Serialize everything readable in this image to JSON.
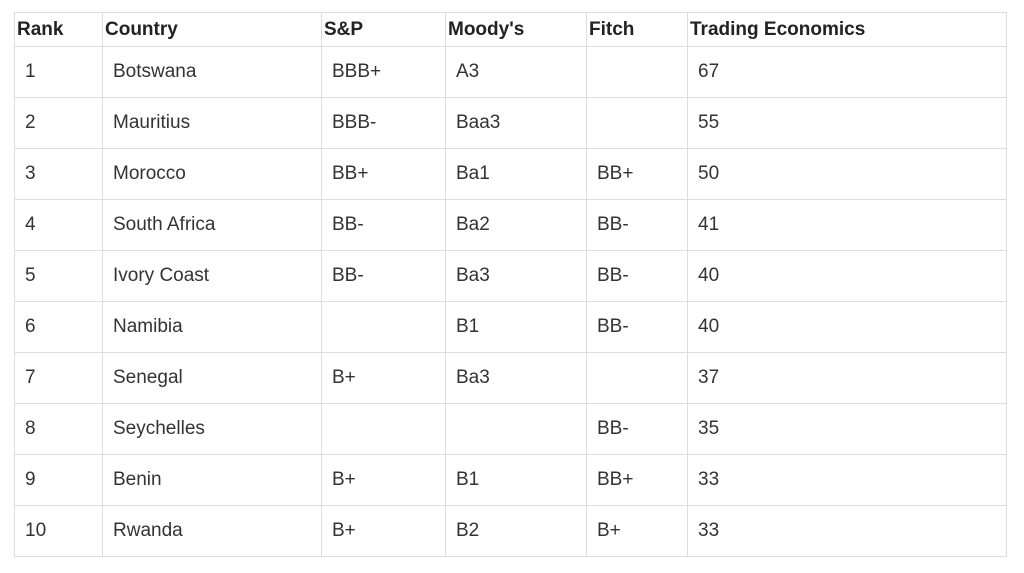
{
  "table": {
    "headers": [
      "Rank",
      "Country",
      "S&P",
      "Moody's",
      "Fitch",
      "Trading Economics"
    ],
    "rows": [
      [
        "1",
        "Botswana",
        "BBB+",
        "A3",
        "",
        "67"
      ],
      [
        "2",
        "Mauritius",
        "BBB-",
        "Baa3",
        "",
        "55"
      ],
      [
        "3",
        "Morocco",
        "BB+",
        "Ba1",
        "BB+",
        "50"
      ],
      [
        "4",
        "South Africa",
        "BB-",
        "Ba2",
        "BB-",
        "41"
      ],
      [
        "5",
        "Ivory Coast",
        "BB-",
        "Ba3",
        "BB-",
        "40"
      ],
      [
        "6",
        "Namibia",
        "",
        "B1",
        "BB-",
        "40"
      ],
      [
        "7",
        "Senegal",
        "B+",
        "Ba3",
        "",
        "37"
      ],
      [
        "8",
        "Seychelles",
        "",
        "",
        "BB-",
        "35"
      ],
      [
        "9",
        "Benin",
        "B+",
        "B1",
        "BB+",
        "33"
      ],
      [
        "10",
        "Rwanda",
        "B+",
        "B2",
        "B+",
        "33"
      ]
    ]
  }
}
